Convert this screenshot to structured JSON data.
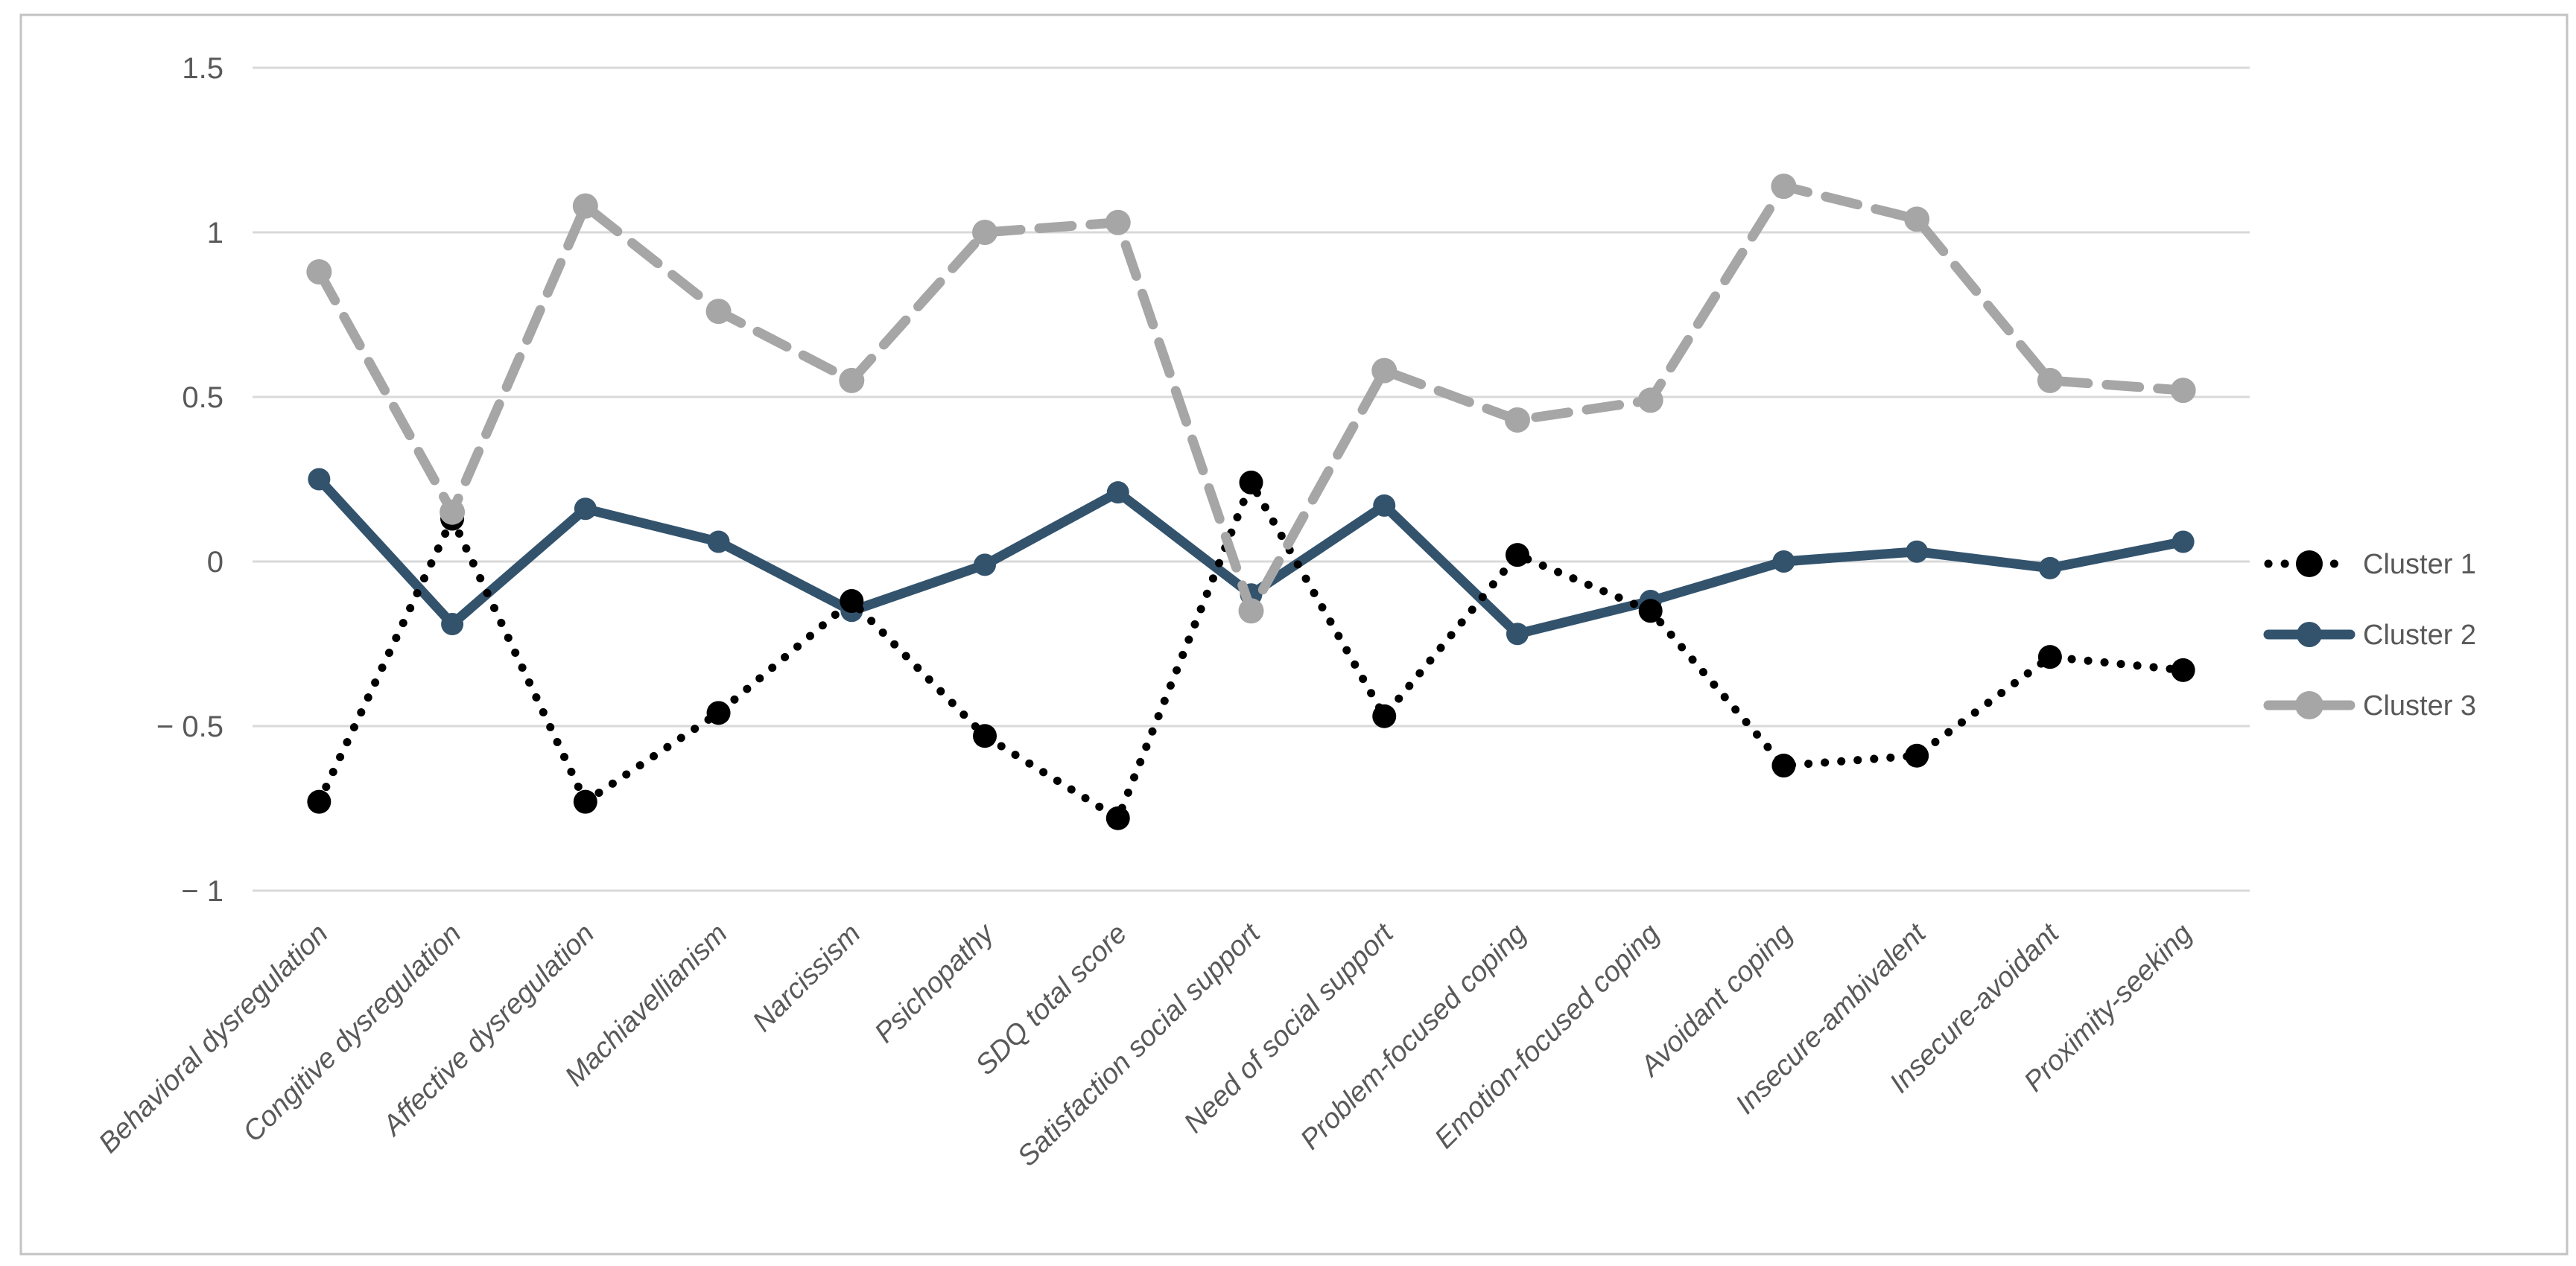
{
  "figure": {
    "background": "#ffffff",
    "border_color": "#c3c3c3"
  },
  "chart_data": {
    "type": "line",
    "title": "",
    "xlabel": "",
    "ylabel": "",
    "grid": true,
    "legend_position": "right",
    "ylim": [
      -1.25,
      1.6
    ],
    "y_ticks": [
      1.5,
      1,
      0.5,
      0,
      -0.5,
      -1
    ],
    "y_tick_labels": [
      "1.5",
      "1",
      "0.5",
      "0",
      "− 0.5",
      "− 1"
    ],
    "gridline_color": "#d9d9d9",
    "text_color": "#595959",
    "categories": [
      "Behavioral dysregulation",
      "Congitive dysregulation",
      "Affective dysregulation",
      "Machiavellianism",
      "Narcissism",
      "Psichopathy",
      "SDQ total score",
      "Satisfaction social support",
      "Need of social support",
      "Problem-focused coping",
      "Emotion-focused coping",
      "Avoidant coping",
      "Insecure-ambivalent",
      "Insecure-avoidant",
      "Proximity-seeking"
    ],
    "series": [
      {
        "name": "Cluster 1",
        "color": "#000000",
        "line_style": "dotted",
        "marker": "circle",
        "values": [
          -0.73,
          0.13,
          -0.73,
          -0.46,
          -0.12,
          -0.53,
          -0.78,
          0.24,
          -0.47,
          0.02,
          -0.15,
          -0.62,
          -0.59,
          -0.29,
          -0.33
        ]
      },
      {
        "name": "Cluster 2",
        "color": "#33536d",
        "line_style": "solid",
        "marker": "circle",
        "values": [
          0.25,
          -0.19,
          0.16,
          0.06,
          -0.15,
          -0.01,
          0.21,
          -0.1,
          0.17,
          -0.22,
          -0.12,
          0.0,
          0.03,
          -0.02,
          0.06
        ]
      },
      {
        "name": "Cluster 3",
        "color": "#a6a6a6",
        "line_style": "dashed",
        "marker": "circle",
        "values": [
          0.88,
          0.15,
          1.08,
          0.76,
          0.55,
          1.0,
          1.03,
          -0.15,
          0.58,
          0.43,
          0.49,
          1.14,
          1.04,
          0.55,
          0.52
        ]
      }
    ]
  }
}
